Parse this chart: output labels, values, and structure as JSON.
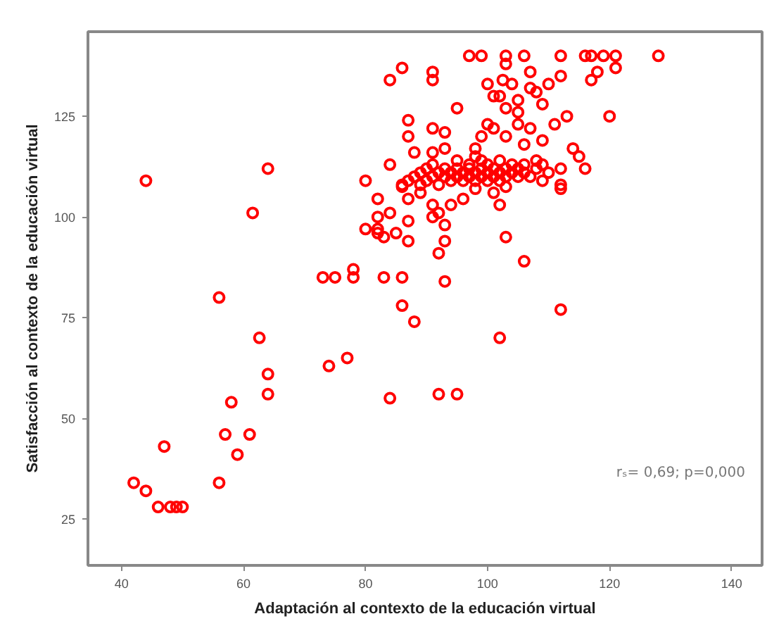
{
  "chart_data": {
    "type": "scatter",
    "xlabel": "Adaptación al contexto de la educación virtual",
    "ylabel": "Satisfacción al contexto de la educación virtual",
    "xlim": [
      34.5,
      145
    ],
    "ylim": [
      13.5,
      146
    ],
    "xticks": [
      40,
      60,
      80,
      100,
      120,
      140
    ],
    "yticks": [
      25,
      50,
      75,
      100,
      125
    ],
    "grid": false,
    "marker": "circle",
    "annotations": [
      "rₛ= 0,69; p=0,000"
    ],
    "series": [
      {
        "color": "#ff0000",
        "x": [
          97,
          99,
          103,
          106,
          112,
          116,
          117,
          119,
          121,
          128,
          86,
          103,
          84,
          91,
          91,
          102.5,
          107,
          112,
          110,
          118,
          117,
          121,
          100,
          104,
          107,
          108,
          109,
          101,
          102,
          105,
          105,
          105,
          103,
          95,
          111,
          113,
          120,
          100,
          101,
          107,
          87,
          87,
          91,
          93,
          99,
          103,
          106,
          109,
          98,
          88,
          91,
          93,
          114,
          115,
          84,
          116,
          64,
          44,
          80,
          112,
          109,
          112,
          112,
          86,
          82,
          87,
          89,
          96,
          98,
          101,
          103,
          102,
          91,
          94,
          92,
          61.5,
          84,
          82,
          80,
          82,
          82,
          91,
          93,
          87,
          85,
          83,
          87,
          93,
          92,
          103,
          106,
          73,
          75,
          78,
          78,
          83,
          86,
          93,
          56,
          86,
          88,
          112,
          62.6,
          102,
          77,
          74,
          64,
          64,
          58,
          84,
          92,
          95,
          57,
          61,
          59,
          47,
          42,
          44,
          56,
          46,
          48,
          49,
          50,
          88,
          89,
          90,
          90,
          91,
          92,
          92,
          93,
          93,
          94,
          94,
          95,
          95,
          96,
          96,
          97,
          97,
          97,
          98,
          98,
          99,
          99,
          99,
          100,
          100,
          100,
          101,
          101,
          102,
          102,
          103,
          103,
          104,
          104,
          105,
          105,
          106,
          107,
          108,
          109,
          110,
          86,
          87,
          89,
          91,
          95,
          98,
          102,
          106,
          108
        ],
        "values": [
          140,
          140,
          140,
          140,
          140,
          140,
          140,
          140,
          140,
          140,
          137,
          138,
          134,
          136,
          134,
          134,
          136,
          135,
          133,
          136,
          134,
          137,
          133,
          133,
          132,
          131,
          128,
          130,
          130,
          129,
          126,
          123,
          127,
          127,
          123,
          125,
          125,
          123,
          122,
          122,
          124,
          120,
          122,
          121,
          120,
          120,
          118,
          119,
          117,
          116,
          116,
          117,
          117,
          115,
          113,
          112,
          112,
          109,
          109,
          112,
          109,
          108,
          107,
          107.5,
          104.5,
          104.5,
          106,
          104.5,
          107,
          106,
          107.5,
          103,
          103,
          103,
          101,
          101,
          101,
          100,
          97,
          97,
          96,
          100,
          98,
          99,
          96,
          95,
          94,
          94,
          91,
          95,
          89,
          85,
          85,
          87,
          85,
          85,
          85,
          84,
          80,
          78,
          74,
          77,
          70,
          70,
          65,
          63,
          61,
          56,
          54,
          55,
          56,
          56,
          46,
          46,
          41,
          43,
          34,
          32,
          34,
          28,
          28,
          28,
          28,
          110,
          111,
          109,
          112,
          110,
          111,
          108,
          112,
          110,
          111,
          109,
          112,
          110,
          111,
          109,
          112,
          110,
          113,
          111,
          109,
          112,
          110,
          114,
          111,
          109,
          113,
          110,
          112,
          111,
          109,
          112,
          110,
          111,
          113,
          110,
          112,
          111,
          110,
          112,
          113,
          111,
          108,
          109,
          108,
          113,
          114,
          115,
          114,
          113,
          114
        ]
      }
    ]
  }
}
